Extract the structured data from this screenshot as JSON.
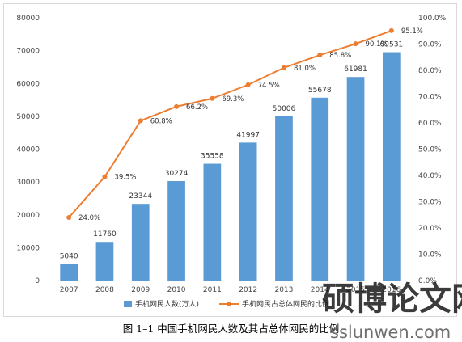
{
  "caption": "图 1–1 中国手机网民人数及其占总体网民的比例",
  "chart_data": {
    "type": "bar",
    "categories": [
      "2007",
      "2008",
      "2009",
      "2010",
      "2011",
      "2012",
      "2013",
      "2014",
      "2015",
      "2016"
    ],
    "series": [
      {
        "name": "手机网民人数(万人)",
        "type": "bar",
        "axis": "left",
        "color": "#5B9BD5",
        "values": [
          5040,
          11760,
          23344,
          30274,
          35558,
          41997,
          50006,
          55678,
          61981,
          69531
        ],
        "labels": [
          "5040",
          "11760",
          "23344",
          "30274",
          "35558",
          "41997",
          "50006",
          "55678",
          "61981",
          "69531"
        ]
      },
      {
        "name": "手机网民占总体网民的比例",
        "type": "line",
        "axis": "right",
        "color": "#ED7D31",
        "values": [
          24.0,
          39.5,
          60.8,
          66.2,
          69.3,
          74.5,
          81.0,
          85.8,
          90.1,
          95.1
        ],
        "labels": [
          "24.0%",
          "39.5%",
          "60.8%",
          "66.2%",
          "69.3%",
          "74.5%",
          "81.0%",
          "85.8%",
          "90.1%",
          "95.1%"
        ]
      }
    ],
    "y_left": {
      "min": 0,
      "max": 80000,
      "ticks": [
        "0",
        "10000",
        "20000",
        "30000",
        "40000",
        "50000",
        "60000",
        "70000",
        "80000"
      ]
    },
    "y_right": {
      "min": 0,
      "max": 100,
      "ticks": [
        "0.0%",
        "10.0%",
        "20.0%",
        "30.0%",
        "40.0%",
        "50.0%",
        "60.0%",
        "70.0%",
        "80.0%",
        "90.0%",
        "100.0%"
      ]
    },
    "grid": false,
    "legend": "bottom"
  },
  "watermark": {
    "text": "硕博论文网",
    "subtext": "sslunwen.com",
    "color": "#1a1a1a"
  }
}
